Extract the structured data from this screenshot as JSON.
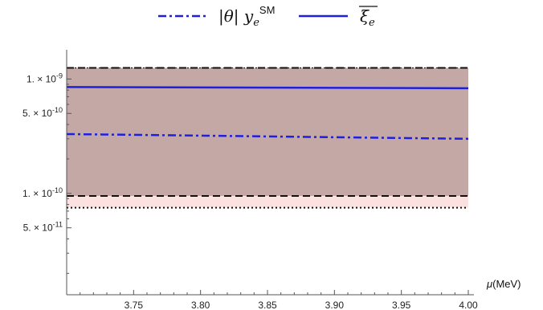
{
  "chart_data": {
    "type": "line",
    "xlabel": "μ(MeV)",
    "xlim": [
      3.7,
      4.0
    ],
    "ylim": [
      1.3e-11,
      1.8e-09
    ],
    "yscale": "log",
    "x_ticks": [
      "3.75",
      "3.80",
      "3.85",
      "3.90",
      "3.95",
      "4.00"
    ],
    "y_ticks": [
      {
        "value": 1e-09,
        "label": "1. × 10"
      },
      {
        "value": 5e-10,
        "label": "5. × 10"
      },
      {
        "value": 1e-10,
        "label": "1. × 10"
      },
      {
        "value": 5e-11,
        "label": "5. × 10"
      }
    ],
    "y_tick_exponents": [
      "-9",
      "-10",
      "-10",
      "-11"
    ],
    "legend_position": "top",
    "series": [
      {
        "name": "|θ| y_e^SM",
        "style": "dash-dot",
        "color": "#1f1fe0",
        "x": [
          3.7,
          4.0
        ],
        "y": [
          3.3e-10,
          3e-10
        ]
      },
      {
        "name": "ξ̅_e",
        "style": "solid",
        "color": "#1f1fe0",
        "x": [
          3.7,
          4.0
        ],
        "y": [
          8.5e-10,
          8.3e-10
        ]
      }
    ],
    "bands": [
      {
        "lower": 9.5e-11,
        "upper": 1.25e-09,
        "color": "#c4a8a6",
        "border": "dashed"
      },
      {
        "lower": 7.5e-11,
        "upper": 1.25e-09,
        "color": "#fbe2e0",
        "border": "dotted"
      }
    ]
  }
}
